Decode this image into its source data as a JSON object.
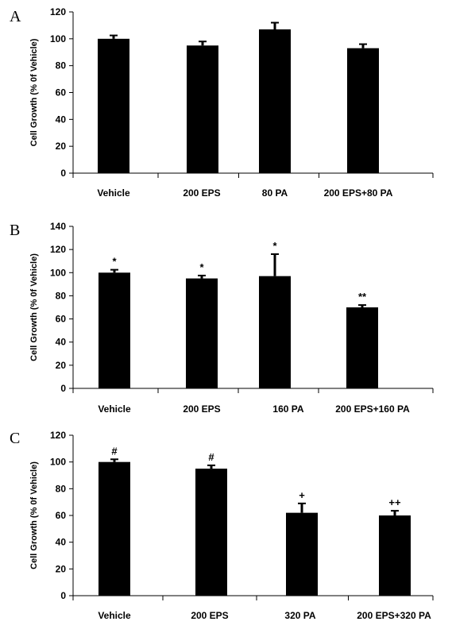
{
  "chart_data": [
    {
      "type": "bar",
      "panel_label": "A",
      "ylabel": "Cell Growth (% 0f Vehicle)",
      "ylim": [
        0,
        120
      ],
      "yticks": [
        0,
        20,
        40,
        60,
        80,
        100,
        120
      ],
      "categories": [
        "Vehicle",
        "200 EPS",
        "80 PA",
        "200 EPS+80 PA"
      ],
      "values": [
        100,
        95,
        107,
        93
      ],
      "errors": [
        2.5,
        3,
        5,
        3
      ],
      "annotations": [
        "",
        "",
        "",
        ""
      ],
      "bar_color": "#000000"
    },
    {
      "type": "bar",
      "panel_label": "B",
      "ylabel": "Cell Growth (% 0f Vehicle)",
      "ylim": [
        0,
        140
      ],
      "yticks": [
        0,
        20,
        40,
        60,
        80,
        100,
        120,
        140
      ],
      "categories": [
        "Vehicle",
        "200 EPS",
        "160 PA",
        "200 EPS+160 PA"
      ],
      "values": [
        100,
        95,
        97,
        70
      ],
      "errors": [
        2.5,
        2.5,
        19,
        2
      ],
      "annotations": [
        "*",
        "*",
        "*",
        "**"
      ],
      "bar_color": "#000000"
    },
    {
      "type": "bar",
      "panel_label": "C",
      "ylabel": "Cell Growth (% 0f Vehicle)",
      "ylim": [
        0,
        120
      ],
      "yticks": [
        0,
        20,
        40,
        60,
        80,
        100,
        120
      ],
      "categories": [
        "Vehicle",
        "200 EPS",
        "320 PA",
        "200 EPS+320 PA"
      ],
      "values": [
        100,
        95,
        62,
        60
      ],
      "errors": [
        2,
        2.5,
        7,
        3.5
      ],
      "annotations": [
        "#",
        "#",
        "+",
        "++"
      ],
      "bar_color": "#000000"
    }
  ]
}
